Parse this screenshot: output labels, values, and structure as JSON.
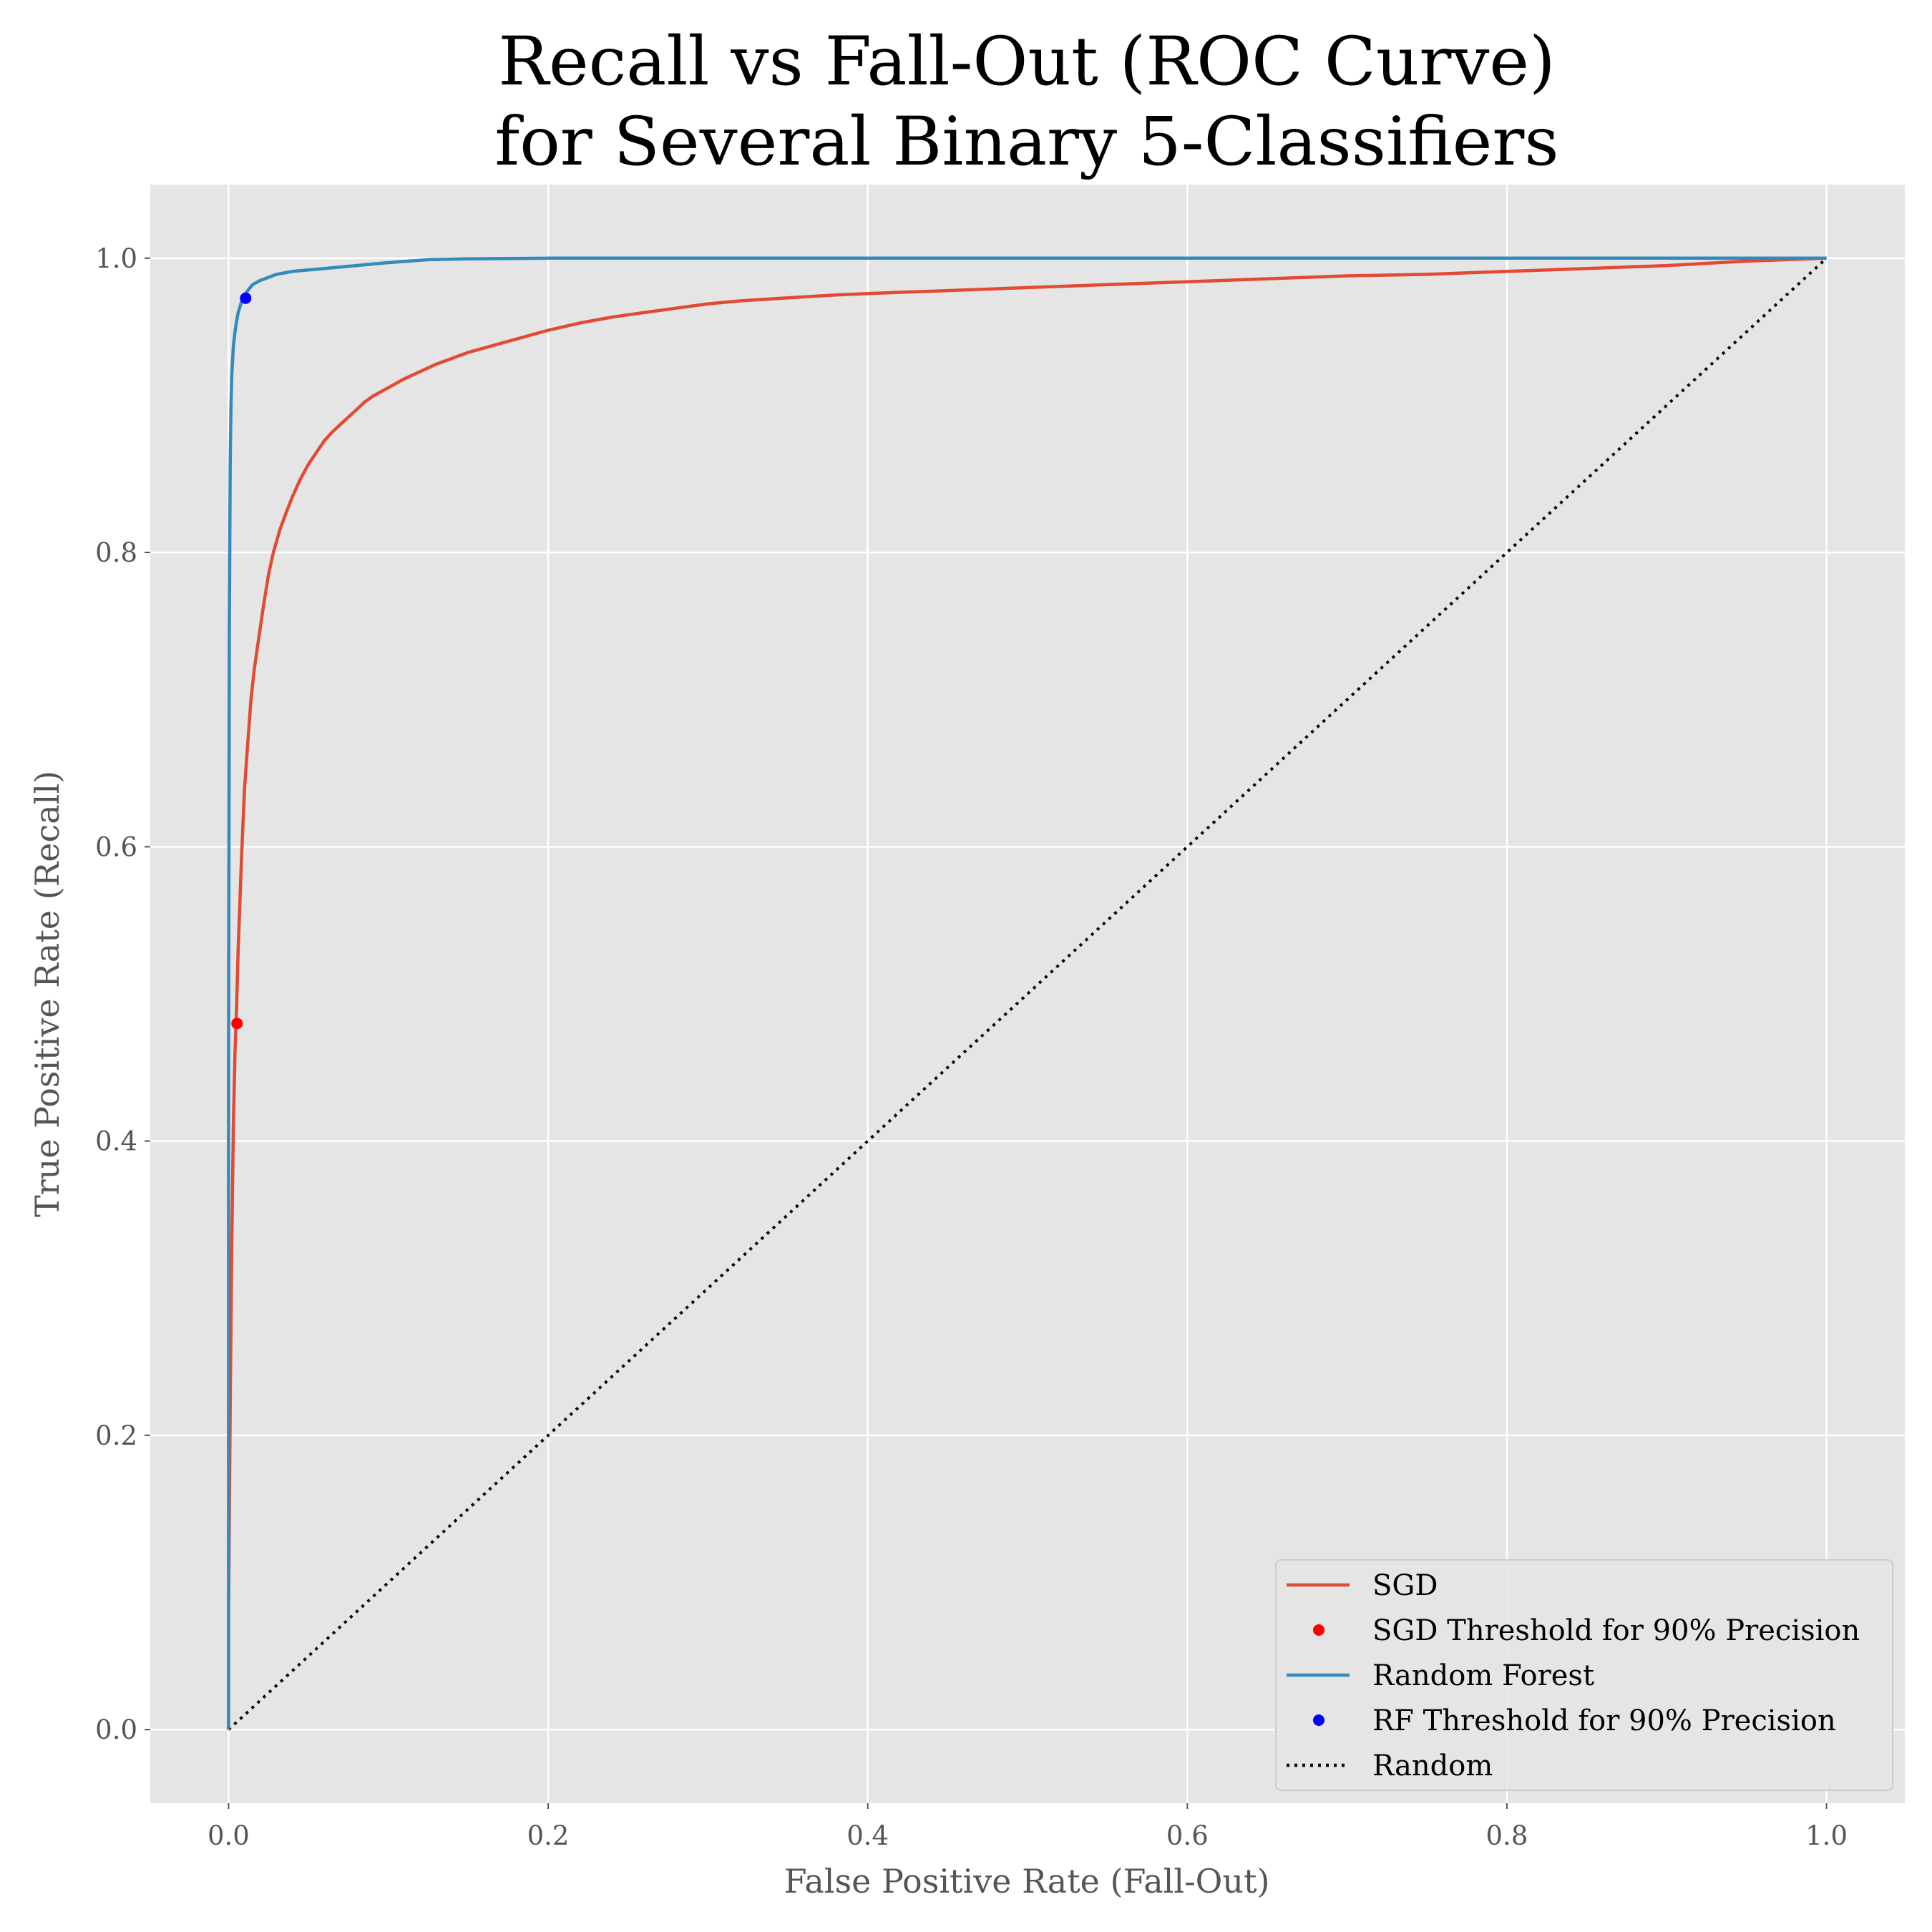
{
  "colors": {
    "sgd": "#E24A33",
    "random_forest": "#348ABD",
    "sgd_threshold": "#FF0000",
    "rf_threshold": "#0000FF",
    "random": "#000000",
    "plot_background": "#E5E5E5",
    "grid": "#FFFFFF"
  },
  "chart_data": {
    "type": "line",
    "title": [
      "Recall vs Fall-Out (ROC Curve)",
      "for Several Binary 5-Classifiers"
    ],
    "xlabel": "False Positive Rate (Fall-Out)",
    "ylabel": "True Positive Rate (Recall)",
    "xlim": [
      -0.049,
      1.049
    ],
    "ylim": [
      -0.05,
      1.05
    ],
    "grid": true,
    "legend_position": "lower-right",
    "xticks": [
      0.0,
      0.2,
      0.4,
      0.6,
      0.8,
      1.0
    ],
    "yticks": [
      0.0,
      0.2,
      0.4,
      0.6,
      0.8,
      1.0
    ],
    "xtick_labels": [
      "0.0",
      "0.2",
      "0.4",
      "0.6",
      "0.8",
      "1.0"
    ],
    "ytick_labels": [
      "0.0",
      "0.2",
      "0.4",
      "0.6",
      "0.8",
      "1.0"
    ],
    "series": [
      {
        "name": "SGD",
        "kind": "line",
        "color": "#E24A33",
        "x": [
          0.0,
          0.0,
          0.001,
          0.002,
          0.003,
          0.004,
          0.005,
          0.006,
          0.007,
          0.008,
          0.009,
          0.01,
          0.012,
          0.014,
          0.016,
          0.018,
          0.02,
          0.022,
          0.025,
          0.028,
          0.032,
          0.036,
          0.04,
          0.045,
          0.05,
          0.055,
          0.06,
          0.065,
          0.07,
          0.075,
          0.08,
          0.085,
          0.09,
          0.095,
          0.1,
          0.11,
          0.12,
          0.13,
          0.14,
          0.15,
          0.16,
          0.17,
          0.18,
          0.19,
          0.2,
          0.22,
          0.24,
          0.26,
          0.28,
          0.3,
          0.32,
          0.35,
          0.38,
          0.4,
          0.45,
          0.5,
          0.55,
          0.6,
          0.65,
          0.7,
          0.75,
          0.8,
          0.85,
          0.9,
          0.95,
          1.0
        ],
        "y": [
          0.0,
          0.08,
          0.22,
          0.33,
          0.41,
          0.46,
          0.49,
          0.53,
          0.56,
          0.59,
          0.615,
          0.64,
          0.67,
          0.7,
          0.72,
          0.735,
          0.75,
          0.765,
          0.785,
          0.8,
          0.815,
          0.827,
          0.838,
          0.85,
          0.86,
          0.868,
          0.876,
          0.882,
          0.887,
          0.892,
          0.897,
          0.902,
          0.906,
          0.909,
          0.912,
          0.918,
          0.923,
          0.928,
          0.932,
          0.936,
          0.939,
          0.942,
          0.945,
          0.948,
          0.951,
          0.956,
          0.96,
          0.963,
          0.966,
          0.969,
          0.971,
          0.973,
          0.975,
          0.976,
          0.978,
          0.98,
          0.982,
          0.984,
          0.986,
          0.988,
          0.989,
          0.991,
          0.993,
          0.995,
          0.998,
          1.0
        ]
      },
      {
        "name": "SGD Threshold for 90% Precision",
        "kind": "point",
        "color": "#FF0000",
        "x": [
          0.0053
        ],
        "y": [
          0.4799
        ]
      },
      {
        "name": "Random Forest",
        "kind": "line",
        "color": "#348ABD",
        "x": [
          0.0,
          0.0,
          0.0005,
          0.001,
          0.0015,
          0.002,
          0.003,
          0.004,
          0.005,
          0.006,
          0.008,
          0.01,
          0.012,
          0.015,
          0.02,
          0.025,
          0.03,
          0.04,
          0.05,
          0.06,
          0.08,
          0.1,
          0.125,
          0.15,
          0.2,
          0.3,
          0.5,
          0.7,
          1.0
        ],
        "y": [
          0.0,
          0.45,
          0.75,
          0.86,
          0.9,
          0.92,
          0.94,
          0.95,
          0.957,
          0.963,
          0.97,
          0.975,
          0.978,
          0.982,
          0.985,
          0.987,
          0.989,
          0.991,
          0.992,
          0.993,
          0.995,
          0.997,
          0.999,
          0.9995,
          1.0,
          1.0,
          1.0,
          1.0,
          1.0
        ]
      },
      {
        "name": "RF Threshold for 90% Precision",
        "kind": "point",
        "color": "#0000FF",
        "x": [
          0.0107
        ],
        "y": [
          0.9728
        ]
      },
      {
        "name": "Random",
        "kind": "dotted",
        "color": "#000000",
        "x": [
          0.0,
          1.0
        ],
        "y": [
          0.0,
          1.0
        ]
      }
    ]
  }
}
